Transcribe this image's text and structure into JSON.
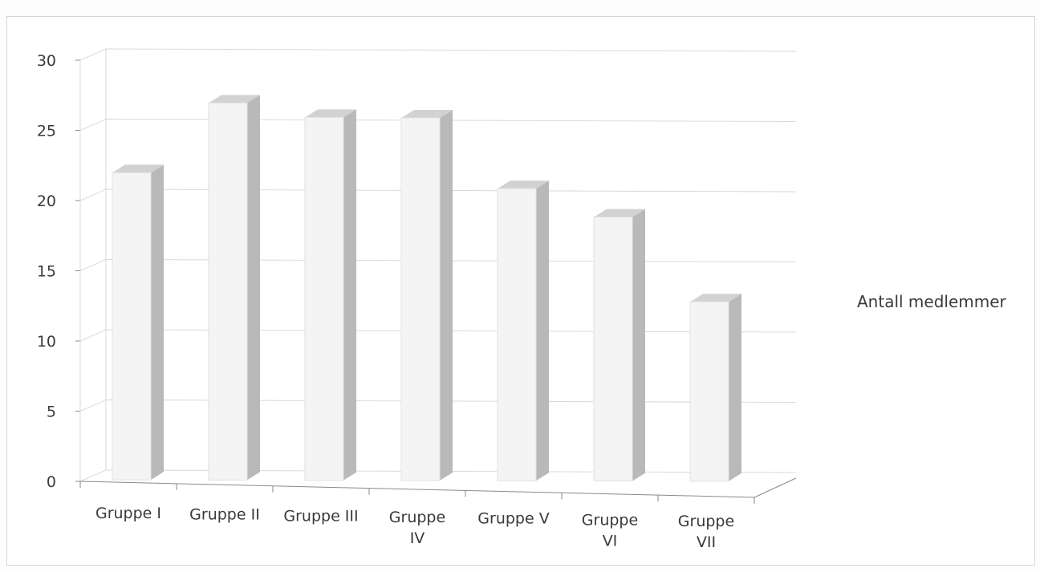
{
  "chart_data": {
    "type": "bar",
    "style": "3d-column",
    "categories": [
      [
        "Gruppe I"
      ],
      [
        "Gruppe II"
      ],
      [
        "Gruppe III"
      ],
      [
        "Gruppe",
        "IV"
      ],
      [
        "Gruppe V"
      ],
      [
        "Gruppe",
        "VI"
      ],
      [
        "Gruppe",
        "VII"
      ]
    ],
    "series": [
      {
        "name": "Antall medlemmer",
        "values": [
          22,
          27,
          26,
          26,
          21,
          19,
          13
        ]
      }
    ],
    "ylim": [
      0,
      30
    ],
    "yticks": [
      "0",
      "5",
      "10",
      "15",
      "20",
      "25",
      "30"
    ],
    "grid": true,
    "legend_position": "right",
    "colors": {
      "bar_front": "#f4f4f4",
      "bar_side": "#b9b9b9",
      "bar_top": "#d2d2d2",
      "grid": "#d9d9d9",
      "axis": "#8a8a8a"
    }
  }
}
